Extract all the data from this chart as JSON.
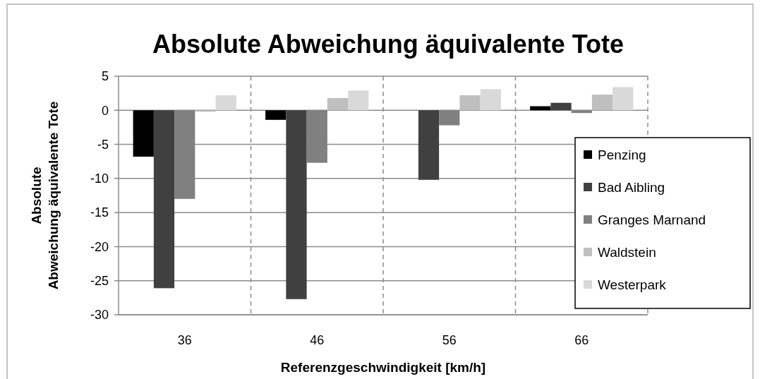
{
  "chart_data": {
    "type": "bar",
    "title": "Absolute Abweichung äquivalente Tote",
    "xlabel": "Referenzgeschwindigkeit [km/h]",
    "ylabel": "Absolute Abweichung äquivalente Tote",
    "categories": [
      "36",
      "46",
      "56",
      "66"
    ],
    "series": [
      {
        "name": "Penzing",
        "color": "#000000",
        "values": [
          -6.8,
          -1.4,
          0,
          0.6
        ]
      },
      {
        "name": "Bad Aibling",
        "color": "#404040",
        "values": [
          -26.1,
          -27.7,
          -10.2,
          1.1
        ]
      },
      {
        "name": "Granges Marnand",
        "color": "#808080",
        "values": [
          -13.0,
          -7.7,
          -2.2,
          -0.4
        ]
      },
      {
        "name": "Waldstein",
        "color": "#bfbfbf",
        "values": [
          -0.2,
          1.8,
          2.2,
          2.3
        ]
      },
      {
        "name": "Westerpark",
        "color": "#d9d9d9",
        "values": [
          2.2,
          2.9,
          3.1,
          3.4
        ]
      }
    ],
    "ylim": [
      -30,
      5
    ],
    "yticks": [
      -30,
      -25,
      -20,
      -15,
      -10,
      -5,
      0,
      5
    ],
    "grid": true,
    "legend": "right"
  }
}
